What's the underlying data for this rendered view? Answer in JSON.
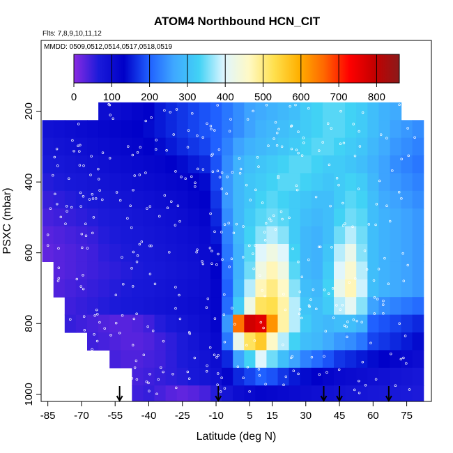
{
  "chart_data": {
    "type": "heatmap",
    "title": "ATOM4 Northbound HCN_CIT",
    "annotations": [
      "Flts: 7,8,9,10,11,12",
      "MMDD: 0509,0512,0514,0517,0518,0519"
    ],
    "xlabel": "Latitude (deg N)",
    "ylabel": "PSXC (mbar)",
    "x_ticks": [
      -85,
      -70,
      -55,
      -40,
      -25,
      -10,
      5,
      15,
      30,
      45,
      60,
      75
    ],
    "y_ticks": [
      200,
      400,
      600,
      800,
      1000
    ],
    "xlim": [
      -88,
      86
    ],
    "ylim": [
      1020,
      0
    ],
    "colorbar": {
      "ticks": [
        0,
        100,
        200,
        300,
        400,
        500,
        600,
        700,
        800
      ],
      "range": [
        0,
        860
      ],
      "colors": [
        "#8a2be2",
        "#1a1ad9",
        "#0000c8",
        "#1f5fff",
        "#3fa8ff",
        "#41d2f5",
        "#dff6ff",
        "#fff9c4",
        "#ffe04d",
        "#ffb000",
        "#ff6600",
        "#ff0000",
        "#c40000",
        "#8b1a1a"
      ]
    },
    "arrows_x": [
      -53,
      -9,
      38,
      45,
      67
    ],
    "x_cols": [
      -85,
      -80,
      -75,
      -70,
      -65,
      -60,
      -55,
      -50,
      -45,
      -40,
      -35,
      -30,
      -25,
      -20,
      -15,
      -10,
      -5,
      0,
      5,
      10,
      15,
      20,
      25,
      30,
      35,
      40,
      45,
      50,
      55,
      60,
      65,
      70,
      75,
      80
    ],
    "y_rows": [
      200,
      250,
      300,
      350,
      400,
      450,
      500,
      550,
      600,
      650,
      700,
      750,
      800,
      850,
      900,
      950,
      1000
    ],
    "values": [
      [
        null,
        null,
        null,
        null,
        null,
        100,
        100,
        110,
        120,
        130,
        150,
        160,
        170,
        180,
        190,
        200,
        220,
        240,
        260,
        270,
        280,
        290,
        300,
        320,
        330,
        340,
        340,
        330,
        320,
        300,
        280,
        270,
        null,
        null
      ],
      [
        90,
        95,
        100,
        105,
        110,
        115,
        120,
        125,
        130,
        140,
        150,
        160,
        170,
        180,
        190,
        200,
        220,
        240,
        260,
        280,
        290,
        300,
        310,
        320,
        330,
        340,
        340,
        330,
        320,
        300,
        280,
        260,
        250,
        240
      ],
      [
        80,
        85,
        90,
        95,
        100,
        105,
        110,
        115,
        120,
        130,
        140,
        150,
        160,
        170,
        180,
        200,
        230,
        260,
        280,
        290,
        300,
        310,
        320,
        330,
        340,
        340,
        330,
        320,
        310,
        290,
        270,
        250,
        240,
        230
      ],
      [
        70,
        75,
        80,
        85,
        90,
        95,
        100,
        105,
        110,
        115,
        120,
        130,
        140,
        150,
        160,
        190,
        240,
        280,
        300,
        310,
        320,
        330,
        340,
        340,
        330,
        320,
        320,
        310,
        300,
        280,
        260,
        240,
        230,
        220
      ],
      [
        60,
        65,
        70,
        75,
        80,
        85,
        90,
        95,
        100,
        105,
        110,
        115,
        120,
        130,
        140,
        180,
        250,
        290,
        310,
        320,
        330,
        340,
        340,
        330,
        320,
        310,
        320,
        330,
        320,
        290,
        260,
        250,
        240,
        230
      ],
      [
        50,
        55,
        60,
        65,
        70,
        75,
        80,
        85,
        90,
        95,
        100,
        105,
        110,
        120,
        130,
        170,
        250,
        290,
        310,
        330,
        340,
        330,
        320,
        310,
        300,
        300,
        320,
        340,
        330,
        300,
        270,
        260,
        250,
        240
      ],
      [
        40,
        45,
        50,
        55,
        60,
        65,
        70,
        75,
        80,
        85,
        90,
        95,
        100,
        110,
        120,
        160,
        240,
        290,
        320,
        340,
        350,
        340,
        320,
        300,
        290,
        300,
        330,
        350,
        340,
        300,
        280,
        270,
        260,
        250
      ],
      [
        30,
        35,
        40,
        45,
        50,
        60,
        65,
        70,
        75,
        80,
        85,
        90,
        95,
        100,
        110,
        150,
        230,
        290,
        330,
        360,
        380,
        360,
        320,
        290,
        280,
        300,
        350,
        380,
        350,
        300,
        280,
        270,
        260,
        250
      ],
      [
        25,
        30,
        35,
        40,
        45,
        55,
        60,
        65,
        70,
        75,
        80,
        85,
        90,
        95,
        105,
        140,
        220,
        280,
        340,
        400,
        430,
        400,
        330,
        290,
        280,
        310,
        380,
        420,
        360,
        300,
        280,
        270,
        260,
        250
      ],
      [
        null,
        30,
        35,
        40,
        45,
        50,
        55,
        60,
        65,
        70,
        75,
        80,
        85,
        90,
        100,
        130,
        210,
        280,
        350,
        430,
        470,
        430,
        340,
        290,
        280,
        320,
        400,
        450,
        380,
        300,
        280,
        270,
        260,
        250
      ],
      [
        null,
        35,
        40,
        45,
        50,
        55,
        60,
        65,
        70,
        75,
        80,
        85,
        90,
        95,
        100,
        120,
        200,
        290,
        380,
        470,
        500,
        460,
        360,
        300,
        290,
        330,
        420,
        470,
        390,
        300,
        280,
        270,
        260,
        250
      ],
      [
        null,
        null,
        45,
        50,
        55,
        60,
        65,
        70,
        75,
        80,
        85,
        90,
        95,
        100,
        105,
        120,
        210,
        320,
        430,
        520,
        530,
        480,
        380,
        310,
        300,
        320,
        380,
        410,
        360,
        260,
        240,
        230,
        220,
        210
      ],
      [
        null,
        null,
        50,
        45,
        40,
        35,
        30,
        30,
        35,
        45,
        60,
        70,
        80,
        90,
        100,
        120,
        250,
        650,
        780,
        760,
        620,
        480,
        380,
        320,
        300,
        290,
        300,
        300,
        280,
        200,
        190,
        180,
        170,
        160
      ],
      [
        null,
        null,
        null,
        null,
        45,
        40,
        35,
        30,
        30,
        35,
        45,
        55,
        65,
        80,
        95,
        110,
        220,
        420,
        520,
        560,
        460,
        380,
        330,
        300,
        290,
        270,
        250,
        240,
        220,
        180,
        170,
        160,
        150,
        140
      ],
      [
        null,
        null,
        null,
        null,
        null,
        null,
        40,
        35,
        35,
        40,
        45,
        55,
        65,
        75,
        85,
        100,
        160,
        260,
        330,
        400,
        350,
        300,
        260,
        230,
        210,
        190,
        170,
        160,
        150,
        140,
        130,
        120,
        110,
        100
      ],
      [
        null,
        null,
        null,
        null,
        null,
        null,
        null,
        null,
        40,
        45,
        50,
        55,
        60,
        70,
        80,
        90,
        120,
        160,
        180,
        200,
        190,
        170,
        150,
        140,
        130,
        120,
        110,
        105,
        100,
        95,
        90,
        85,
        80,
        75
      ],
      [
        null,
        null,
        null,
        null,
        null,
        null,
        null,
        null,
        45,
        50,
        40,
        30,
        25,
        30,
        40,
        60,
        80,
        100,
        110,
        120,
        115,
        110,
        105,
        100,
        95,
        90,
        85,
        80,
        78,
        75,
        72,
        70,
        68,
        65
      ]
    ]
  }
}
